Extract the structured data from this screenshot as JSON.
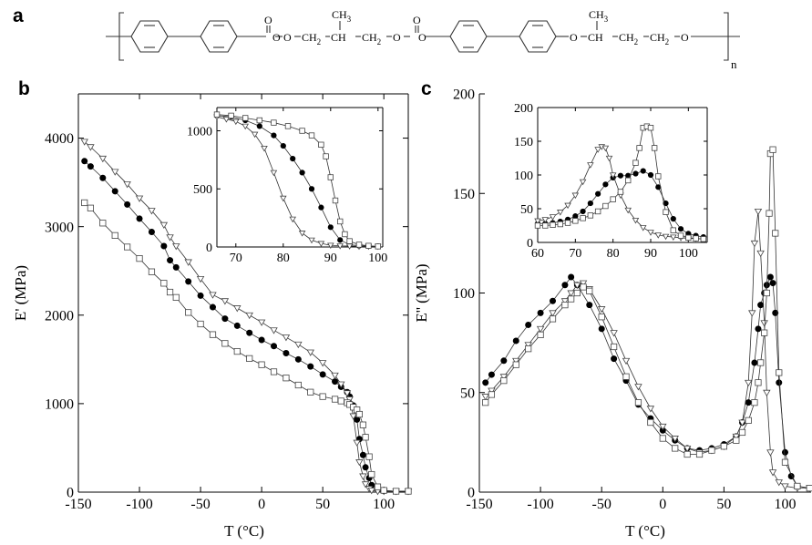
{
  "panels": {
    "a": "a",
    "b": "b",
    "c": "c"
  },
  "structure": {
    "carbonyl_o": "O",
    "ester_o": "O",
    "ch2": "CH",
    "sub2": "2",
    "ch": "CH",
    "ch3": "CH",
    "sub3": "3",
    "n": "n"
  },
  "chart_data": [
    {
      "id": "b-main",
      "type": "scatter",
      "xlabel": "T (°C)",
      "ylabel": "E' (MPa)",
      "xlim": [
        -150,
        120
      ],
      "ylim": [
        0,
        4500
      ],
      "xticks": [
        -150,
        -100,
        -50,
        0,
        50,
        100
      ],
      "yticks": [
        0,
        1000,
        2000,
        3000,
        4000
      ],
      "series": [
        {
          "marker": "filled-circle",
          "x": [
            -145,
            -140,
            -130,
            -120,
            -110,
            -100,
            -90,
            -80,
            -75,
            -70,
            -60,
            -50,
            -40,
            -30,
            -20,
            -10,
            0,
            10,
            20,
            30,
            40,
            50,
            60,
            65,
            70,
            72,
            75,
            78,
            80,
            83,
            85,
            88,
            90,
            95,
            100,
            110,
            120
          ],
          "y": [
            3740,
            3680,
            3550,
            3400,
            3250,
            3090,
            2940,
            2780,
            2620,
            2540,
            2380,
            2220,
            2090,
            1960,
            1880,
            1800,
            1720,
            1650,
            1570,
            1500,
            1420,
            1330,
            1250,
            1190,
            1130,
            1080,
            980,
            820,
            600,
            420,
            280,
            160,
            80,
            30,
            15,
            10,
            10
          ]
        },
        {
          "marker": "open-triangle-down",
          "x": [
            -145,
            -140,
            -130,
            -120,
            -110,
            -100,
            -90,
            -80,
            -75,
            -70,
            -60,
            -50,
            -40,
            -30,
            -20,
            -10,
            0,
            10,
            20,
            30,
            40,
            50,
            60,
            65,
            70,
            72,
            75,
            78,
            80,
            83,
            85,
            88,
            90,
            95,
            100,
            110,
            120
          ],
          "y": [
            3960,
            3900,
            3770,
            3620,
            3480,
            3320,
            3180,
            3020,
            2880,
            2780,
            2600,
            2410,
            2230,
            2160,
            2080,
            2000,
            1920,
            1830,
            1750,
            1670,
            1580,
            1460,
            1320,
            1220,
            1120,
            1050,
            860,
            560,
            340,
            180,
            90,
            40,
            20,
            10,
            10,
            10,
            10
          ]
        },
        {
          "marker": "open-square",
          "x": [
            -145,
            -140,
            -130,
            -120,
            -110,
            -100,
            -90,
            -80,
            -75,
            -70,
            -60,
            -50,
            -40,
            -30,
            -20,
            -10,
            0,
            10,
            20,
            30,
            40,
            50,
            60,
            65,
            70,
            72,
            75,
            78,
            80,
            83,
            85,
            88,
            90,
            95,
            100,
            110,
            120
          ],
          "y": [
            3270,
            3210,
            3040,
            2900,
            2770,
            2640,
            2490,
            2360,
            2260,
            2200,
            2030,
            1900,
            1780,
            1680,
            1590,
            1510,
            1440,
            1360,
            1290,
            1210,
            1130,
            1080,
            1050,
            1030,
            1010,
            990,
            960,
            930,
            880,
            760,
            620,
            400,
            200,
            60,
            20,
            10,
            10
          ]
        }
      ]
    },
    {
      "id": "b-inset",
      "type": "line",
      "xlim": [
        66,
        101
      ],
      "ylim": [
        0,
        1200
      ],
      "xticks": [
        70,
        80,
        90,
        100
      ],
      "yticks": [
        0,
        500,
        1000
      ],
      "series": [
        {
          "marker": "filled-circle",
          "x": [
            66,
            69,
            72,
            75,
            78,
            80,
            82,
            84,
            86,
            88,
            90,
            92,
            94,
            96,
            98,
            100
          ],
          "y": [
            1130,
            1120,
            1090,
            1040,
            960,
            870,
            760,
            640,
            500,
            340,
            170,
            60,
            20,
            10,
            8,
            5
          ]
        },
        {
          "marker": "open-triangle-down",
          "x": [
            66,
            68,
            70,
            72,
            74,
            76,
            78,
            80,
            82,
            84,
            86,
            88,
            90,
            92,
            94,
            96,
            98,
            100
          ],
          "y": [
            1120,
            1100,
            1080,
            1040,
            970,
            850,
            640,
            420,
            240,
            120,
            60,
            30,
            15,
            10,
            8,
            5,
            5,
            5
          ]
        },
        {
          "marker": "open-square",
          "x": [
            66,
            69,
            72,
            75,
            78,
            81,
            84,
            86,
            88,
            89,
            90,
            91,
            92,
            93,
            94,
            96,
            98,
            100
          ],
          "y": [
            1140,
            1130,
            1110,
            1090,
            1070,
            1040,
            1000,
            960,
            880,
            780,
            600,
            400,
            220,
            110,
            50,
            20,
            10,
            5
          ]
        }
      ]
    },
    {
      "id": "c-main",
      "type": "scatter",
      "xlabel": "T (°C)",
      "ylabel": "E'' (MPa)",
      "xlim": [
        -150,
        122
      ],
      "ylim": [
        0,
        200
      ],
      "xticks": [
        -150,
        -100,
        -50,
        0,
        50,
        100
      ],
      "yticks": [
        0,
        50,
        100,
        150,
        200
      ],
      "series": [
        {
          "marker": "filled-circle",
          "x": [
            -145,
            -140,
            -130,
            -120,
            -110,
            -100,
            -90,
            -80,
            -75,
            -70,
            -60,
            -50,
            -40,
            -30,
            -20,
            -10,
            0,
            10,
            20,
            30,
            40,
            50,
            60,
            65,
            70,
            75,
            78,
            80,
            83,
            85,
            88,
            90,
            92,
            95,
            100,
            105,
            110,
            120
          ],
          "y": [
            55,
            59,
            66,
            76,
            84,
            90,
            96,
            104,
            108,
            104,
            94,
            82,
            67,
            56,
            44,
            37,
            31,
            26,
            22,
            21,
            22,
            24,
            28,
            35,
            45,
            65,
            82,
            94,
            100,
            104,
            108,
            105,
            90,
            55,
            20,
            8,
            3,
            2
          ]
        },
        {
          "marker": "open-triangle-down",
          "x": [
            -145,
            -140,
            -130,
            -120,
            -110,
            -100,
            -90,
            -80,
            -75,
            -70,
            -65,
            -60,
            -50,
            -40,
            -30,
            -20,
            -10,
            0,
            10,
            20,
            30,
            40,
            50,
            60,
            65,
            70,
            73,
            75,
            78,
            80,
            83,
            85,
            88,
            90,
            95,
            100,
            110,
            120
          ],
          "y": [
            48,
            51,
            58,
            66,
            74,
            82,
            90,
            96,
            100,
            104,
            105,
            102,
            92,
            80,
            66,
            53,
            42,
            33,
            27,
            22,
            20,
            21,
            23,
            28,
            35,
            55,
            90,
            125,
            141,
            120,
            85,
            50,
            20,
            10,
            5,
            3,
            2,
            2
          ]
        },
        {
          "marker": "open-square",
          "x": [
            -145,
            -140,
            -130,
            -120,
            -110,
            -100,
            -90,
            -80,
            -75,
            -70,
            -65,
            -60,
            -50,
            -40,
            -30,
            -20,
            -10,
            0,
            10,
            20,
            30,
            40,
            50,
            60,
            65,
            70,
            75,
            78,
            80,
            83,
            85,
            87,
            88,
            90,
            92,
            95,
            100,
            110,
            120
          ],
          "y": [
            45,
            49,
            56,
            64,
            72,
            79,
            87,
            94,
            97,
            100,
            103,
            101,
            88,
            73,
            58,
            45,
            35,
            27,
            22,
            19,
            19,
            21,
            23,
            26,
            30,
            36,
            45,
            55,
            65,
            80,
            100,
            140,
            170,
            172,
            130,
            60,
            15,
            3,
            2
          ]
        }
      ]
    },
    {
      "id": "c-inset",
      "type": "line",
      "xlim": [
        60,
        105
      ],
      "ylim": [
        0,
        200
      ],
      "xticks": [
        60,
        70,
        80,
        90,
        100
      ],
      "yticks": [
        0,
        50,
        100,
        150,
        200
      ],
      "series": [
        {
          "marker": "filled-circle",
          "x": [
            60,
            62,
            64,
            66,
            68,
            70,
            72,
            74,
            76,
            78,
            80,
            82,
            84,
            86,
            88,
            90,
            92,
            94,
            96,
            98,
            100,
            102,
            104
          ],
          "y": [
            28,
            28,
            29,
            31,
            34,
            39,
            46,
            58,
            72,
            86,
            96,
            99,
            99,
            102,
            106,
            100,
            82,
            58,
            35,
            20,
            13,
            10,
            8
          ]
        },
        {
          "marker": "open-triangle-down",
          "x": [
            60,
            62,
            64,
            66,
            68,
            70,
            72,
            74,
            76,
            77,
            78,
            79,
            80,
            82,
            84,
            86,
            88,
            90,
            92,
            94,
            96,
            98,
            100,
            102,
            104
          ],
          "y": [
            32,
            34,
            38,
            45,
            55,
            70,
            90,
            115,
            138,
            142,
            140,
            125,
            100,
            70,
            48,
            33,
            22,
            15,
            11,
            9,
            8,
            7,
            6,
            6,
            5
          ]
        },
        {
          "marker": "open-square",
          "x": [
            60,
            62,
            64,
            66,
            68,
            70,
            72,
            74,
            76,
            78,
            80,
            82,
            84,
            86,
            87,
            88,
            89,
            90,
            91,
            92,
            94,
            96,
            98,
            100,
            102,
            104
          ],
          "y": [
            25,
            25,
            26,
            27,
            29,
            32,
            36,
            40,
            46,
            54,
            64,
            75,
            92,
            118,
            140,
            170,
            172,
            170,
            140,
            98,
            45,
            18,
            10,
            7,
            6,
            5
          ]
        }
      ]
    }
  ]
}
